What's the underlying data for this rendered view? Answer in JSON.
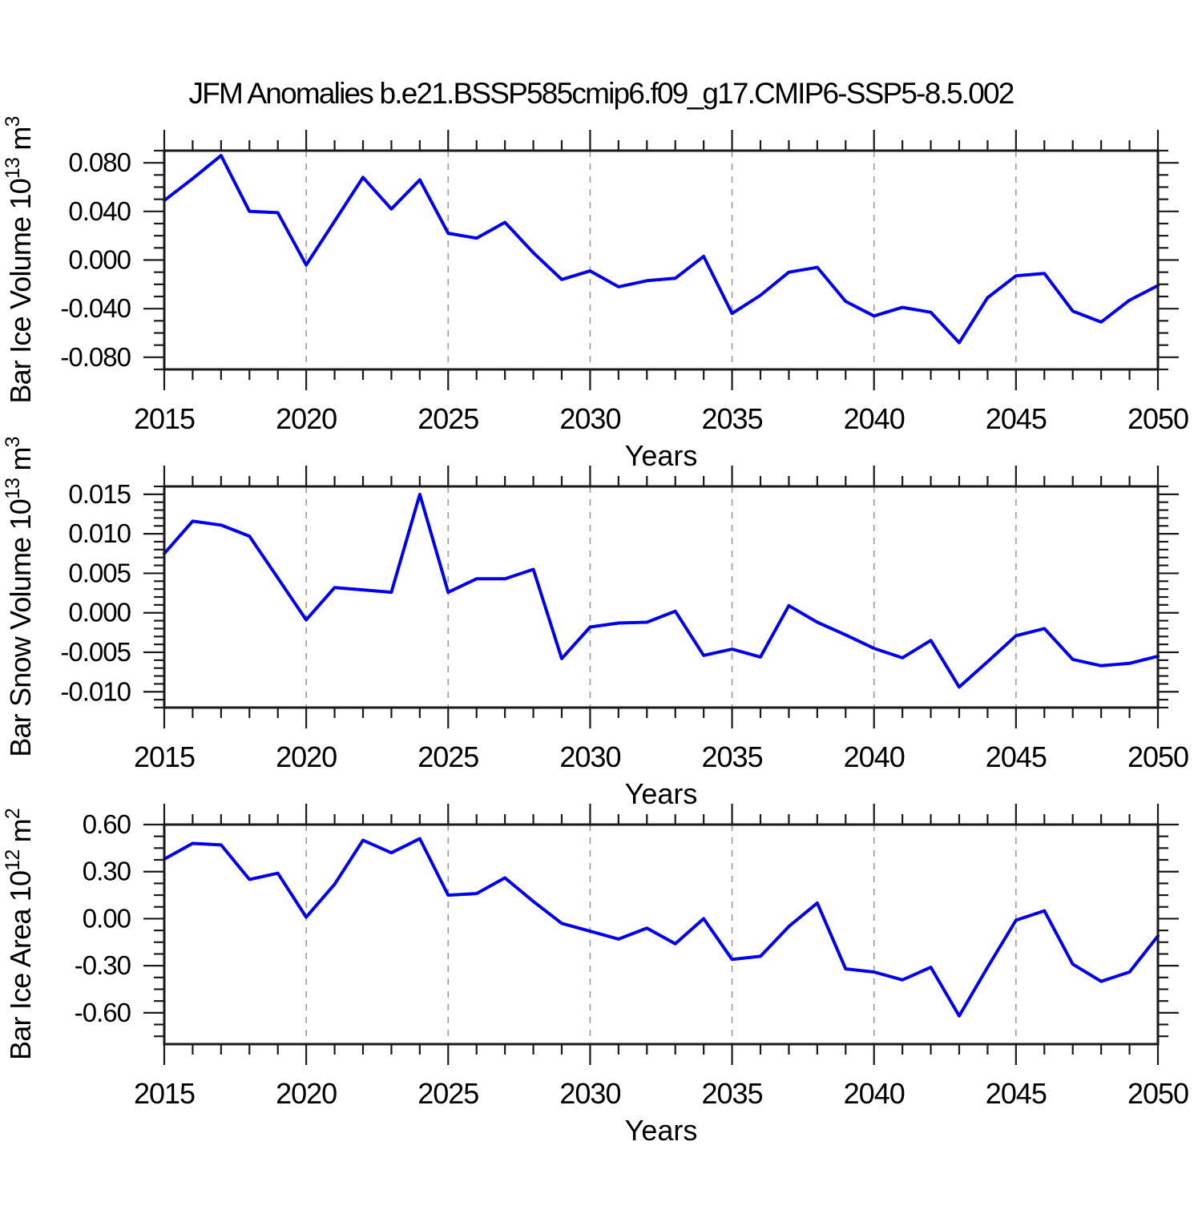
{
  "title": "JFM Anomalies b.e21.BSSP585cmip6.f09_g17.CMIP6-SSP5-8.5.002",
  "xlabel": "Years",
  "colors": {
    "line": "#0000ee",
    "grid": "#9a9a9a",
    "axis": "#1a1a1a",
    "text": "#000000"
  },
  "x_axis": {
    "start": 2015,
    "end": 2050,
    "major_tick_years": [
      2015,
      2020,
      2025,
      2030,
      2035,
      2040,
      2045,
      2050
    ],
    "major_tick_labels": [
      "2015",
      "2020",
      "2025",
      "2030",
      "2035",
      "2040",
      "2045",
      "2050"
    ],
    "grid_years": [
      2020,
      2025,
      2030,
      2035,
      2040,
      2045
    ]
  },
  "chart_data": [
    {
      "type": "line",
      "id": "bar-ice-volume",
      "ylabel": "Bar Ice Volume 10^13 m^3",
      "xlabel": "Years",
      "ylim": [
        -0.09,
        0.09
      ],
      "ytick_values": [
        0.08,
        0.04,
        0.0,
        -0.04,
        -0.08
      ],
      "ytick_labels": [
        "0.080",
        "0.040",
        "0.000",
        "-0.040",
        "-0.080"
      ],
      "y_minor_step": 0.01,
      "grid": "vertical-dashed",
      "legend": "none",
      "x": [
        2015,
        2016,
        2017,
        2018,
        2019,
        2020,
        2021,
        2022,
        2023,
        2024,
        2025,
        2026,
        2027,
        2028,
        2029,
        2030,
        2031,
        2032,
        2033,
        2034,
        2035,
        2036,
        2037,
        2038,
        2039,
        2040,
        2041,
        2042,
        2043,
        2044,
        2045,
        2046,
        2047,
        2048,
        2049,
        2050
      ],
      "values": [
        0.049,
        0.067,
        0.086,
        0.04,
        0.039,
        -0.004,
        0.032,
        0.068,
        0.042,
        0.066,
        0.022,
        0.018,
        0.031,
        0.006,
        -0.016,
        -0.009,
        -0.022,
        -0.017,
        -0.015,
        0.003,
        -0.044,
        -0.029,
        -0.01,
        -0.006,
        -0.034,
        -0.046,
        -0.039,
        -0.043,
        -0.068,
        -0.031,
        -0.013,
        -0.011,
        -0.042,
        -0.051,
        -0.033,
        -0.021
      ]
    },
    {
      "type": "line",
      "id": "bar-snow-volume",
      "ylabel": "Bar Snow Volume 10^13 m^3",
      "xlabel": "Years",
      "ylim": [
        -0.012,
        0.016
      ],
      "ytick_values": [
        0.015,
        0.01,
        0.005,
        0.0,
        -0.005,
        -0.01
      ],
      "ytick_labels": [
        "0.015",
        "0.010",
        "0.005",
        "0.000",
        "-0.005",
        "-0.010"
      ],
      "y_minor_step": 0.001,
      "grid": "vertical-dashed",
      "legend": "none",
      "x": [
        2015,
        2016,
        2017,
        2018,
        2019,
        2020,
        2021,
        2022,
        2023,
        2024,
        2025,
        2026,
        2027,
        2028,
        2029,
        2030,
        2031,
        2032,
        2033,
        2034,
        2035,
        2036,
        2037,
        2038,
        2039,
        2040,
        2041,
        2042,
        2043,
        2044,
        2045,
        2046,
        2047,
        2048,
        2049,
        2050
      ],
      "values": [
        0.0075,
        0.0116,
        0.0111,
        0.0097,
        0.0044,
        -0.0009,
        0.0032,
        0.0029,
        0.0026,
        0.015,
        0.0026,
        0.0043,
        0.0043,
        0.0055,
        -0.0058,
        -0.0018,
        -0.0013,
        -0.0012,
        0.0002,
        -0.0054,
        -0.0046,
        -0.0056,
        0.0009,
        -0.0012,
        -0.0028,
        -0.0045,
        -0.0057,
        -0.0035,
        -0.0094,
        -0.0062,
        -0.0029,
        -0.002,
        -0.0059,
        -0.0067,
        -0.0064,
        -0.0055
      ]
    },
    {
      "type": "line",
      "id": "bar-ice-area",
      "ylabel": "Bar Ice Area 10^12 m^2",
      "xlabel": "Years",
      "ylim": [
        -0.8,
        0.6
      ],
      "ytick_values": [
        0.6,
        0.3,
        0.0,
        -0.3,
        -0.6
      ],
      "ytick_labels": [
        "0.60",
        "0.30",
        "0.00",
        "-0.30",
        "-0.60"
      ],
      "y_minor_step": 0.075,
      "grid": "vertical-dashed",
      "legend": "none",
      "x": [
        2015,
        2016,
        2017,
        2018,
        2019,
        2020,
        2021,
        2022,
        2023,
        2024,
        2025,
        2026,
        2027,
        2028,
        2029,
        2030,
        2031,
        2032,
        2033,
        2034,
        2035,
        2036,
        2037,
        2038,
        2039,
        2040,
        2041,
        2042,
        2043,
        2044,
        2045,
        2046,
        2047,
        2048,
        2049,
        2050
      ],
      "values": [
        0.38,
        0.48,
        0.47,
        0.25,
        0.29,
        0.01,
        0.22,
        0.5,
        0.42,
        0.51,
        0.15,
        0.16,
        0.26,
        0.11,
        -0.03,
        -0.08,
        -0.13,
        -0.06,
        -0.16,
        0.0,
        -0.26,
        -0.24,
        -0.05,
        0.1,
        -0.32,
        -0.34,
        -0.39,
        -0.31,
        -0.62,
        -0.31,
        -0.01,
        0.05,
        -0.29,
        -0.4,
        -0.34,
        -0.11
      ]
    }
  ]
}
